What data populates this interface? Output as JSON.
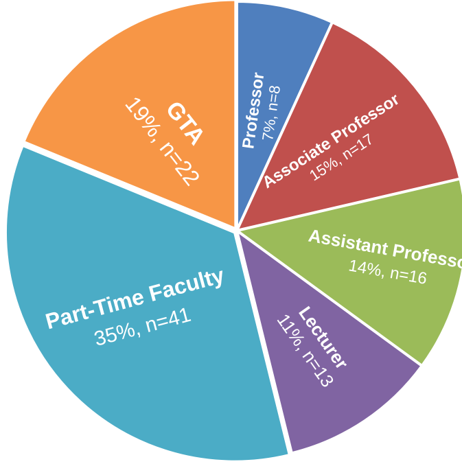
{
  "chart_data": {
    "type": "pie",
    "title": "",
    "slices": [
      {
        "name": "Professor",
        "value": 8,
        "percent": "7%",
        "count": "n=8",
        "detail": "7%, n=8",
        "color": "#4f7fbe"
      },
      {
        "name": "Associate Professor",
        "value": 17,
        "percent": "15%",
        "count": "n=17",
        "detail": "15%, n=17",
        "color": "#c0504d"
      },
      {
        "name": "Assistant Professor",
        "value": 16,
        "percent": "14%",
        "count": "n=16",
        "detail": "14%, n=16",
        "color": "#9bbb59"
      },
      {
        "name": "Lecturer",
        "value": 13,
        "percent": "11%",
        "count": "n=13",
        "detail": "11%, n=13",
        "color": "#8064a2"
      },
      {
        "name": "Part-Time Faculty",
        "value": 41,
        "percent": "35%",
        "count": "n=41",
        "detail": "35%, n=41",
        "color": "#4bacc6"
      },
      {
        "name": "GTA",
        "value": 22,
        "percent": "19%",
        "count": "n=22",
        "detail": "19%, n=22",
        "color": "#f79646"
      }
    ],
    "start": "top",
    "direction": "clockwise",
    "legend": "none",
    "slice_border_color": "#ffffff"
  }
}
